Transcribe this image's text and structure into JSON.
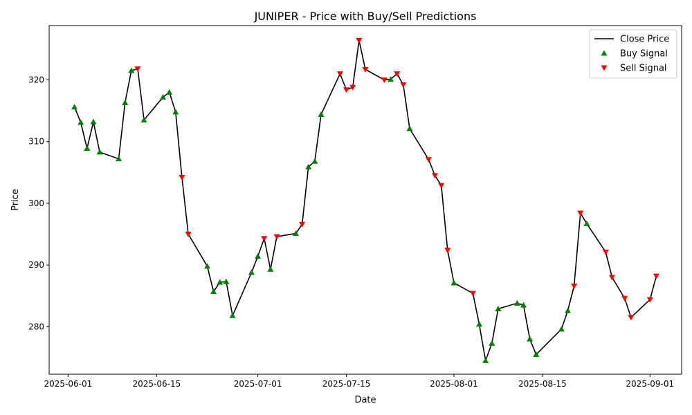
{
  "chart_data": {
    "type": "line",
    "title": "JUNIPER - Price with Buy/Sell Predictions",
    "xlabel": "Date",
    "ylabel": "Price",
    "x_ticks": [
      "2025-06-01",
      "2025-06-15",
      "2025-07-01",
      "2025-07-15",
      "2025-08-01",
      "2025-08-15",
      "2025-09-01"
    ],
    "y_ticks": [
      280,
      290,
      300,
      310,
      320
    ],
    "xlim": [
      "2025-05-29",
      "2025-09-06"
    ],
    "ylim": [
      272.3,
      328.8
    ],
    "legend_position": "top-right",
    "colors": {
      "close": "#000000",
      "buy": "#008000",
      "sell": "#ff0000"
    },
    "series": [
      {
        "name": "Close Price",
        "points": [
          [
            "2025-06-02",
            315.6,
            "buy"
          ],
          [
            "2025-06-03",
            313.1,
            "buy"
          ],
          [
            "2025-06-04",
            308.9,
            "buy"
          ],
          [
            "2025-06-05",
            313.2,
            "buy"
          ],
          [
            "2025-06-06",
            308.3,
            "buy"
          ],
          [
            "2025-06-09",
            307.2,
            "buy"
          ],
          [
            "2025-06-10",
            316.3,
            "buy"
          ],
          [
            "2025-06-11",
            321.5,
            "buy"
          ],
          [
            "2025-06-12",
            321.8,
            "sell"
          ],
          [
            "2025-06-13",
            313.5,
            "buy"
          ],
          [
            "2025-06-16",
            317.2,
            "buy"
          ],
          [
            "2025-06-17",
            318.0,
            "buy"
          ],
          [
            "2025-06-18",
            314.8,
            "buy"
          ],
          [
            "2025-06-19",
            304.2,
            "sell"
          ],
          [
            "2025-06-20",
            295.0,
            "sell"
          ],
          [
            "2025-06-23",
            289.8,
            "buy"
          ],
          [
            "2025-06-24",
            285.7,
            "buy"
          ],
          [
            "2025-06-25",
            287.2,
            "buy"
          ],
          [
            "2025-06-26",
            287.3,
            "buy"
          ],
          [
            "2025-06-27",
            281.8,
            "buy"
          ],
          [
            "2025-06-30",
            288.8,
            "buy"
          ],
          [
            "2025-07-01",
            291.4,
            "buy"
          ],
          [
            "2025-07-02",
            294.3,
            "sell"
          ],
          [
            "2025-07-03",
            289.3,
            "buy"
          ],
          [
            "2025-07-04",
            294.6,
            "sell"
          ],
          [
            "2025-07-07",
            295.1,
            "buy"
          ],
          [
            "2025-07-08",
            296.6,
            "sell"
          ],
          [
            "2025-07-09",
            305.9,
            "buy"
          ],
          [
            "2025-07-10",
            306.8,
            "buy"
          ],
          [
            "2025-07-11",
            314.4,
            "buy"
          ],
          [
            "2025-07-14",
            321.0,
            "sell"
          ],
          [
            "2025-07-15",
            318.4,
            "sell"
          ],
          [
            "2025-07-16",
            318.8,
            "sell"
          ],
          [
            "2025-07-17",
            326.4,
            "sell"
          ],
          [
            "2025-07-18",
            321.7,
            "sell"
          ],
          [
            "2025-07-21",
            320.0,
            "sell"
          ],
          [
            "2025-07-22",
            320.1,
            "buy"
          ],
          [
            "2025-07-23",
            321.0,
            "sell"
          ],
          [
            "2025-07-24",
            319.2,
            "sell"
          ],
          [
            "2025-07-25",
            312.1,
            "buy"
          ],
          [
            "2025-07-28",
            307.1,
            "sell"
          ],
          [
            "2025-07-29",
            304.5,
            "sell"
          ],
          [
            "2025-07-30",
            302.9,
            "sell"
          ],
          [
            "2025-07-31",
            292.4,
            "sell"
          ],
          [
            "2025-08-01",
            287.1,
            "buy"
          ],
          [
            "2025-08-04",
            285.4,
            "sell"
          ],
          [
            "2025-08-05",
            280.4,
            "buy"
          ],
          [
            "2025-08-06",
            274.5,
            "buy"
          ],
          [
            "2025-08-07",
            277.3,
            "buy"
          ],
          [
            "2025-08-08",
            282.9,
            "buy"
          ],
          [
            "2025-08-11",
            283.8,
            "buy"
          ],
          [
            "2025-08-12",
            283.5,
            "buy"
          ],
          [
            "2025-08-13",
            278.0,
            "buy"
          ],
          [
            "2025-08-14",
            275.5,
            "buy"
          ],
          [
            "2025-08-18",
            279.6,
            "buy"
          ],
          [
            "2025-08-19",
            282.6,
            "buy"
          ],
          [
            "2025-08-20",
            286.6,
            "sell"
          ],
          [
            "2025-08-21",
            298.4,
            "sell"
          ],
          [
            "2025-08-22",
            296.7,
            "buy"
          ],
          [
            "2025-08-25",
            292.1,
            "sell"
          ],
          [
            "2025-08-26",
            288.0,
            "sell"
          ],
          [
            "2025-08-28",
            284.6,
            "sell"
          ],
          [
            "2025-08-29",
            281.5,
            "sell"
          ],
          [
            "2025-09-01",
            284.4,
            "sell"
          ],
          [
            "2025-09-02",
            288.2,
            "sell"
          ]
        ]
      }
    ],
    "legend": [
      {
        "label": "Close Price",
        "kind": "line"
      },
      {
        "label": "Buy Signal",
        "kind": "buy"
      },
      {
        "label": "Sell Signal",
        "kind": "sell"
      }
    ]
  }
}
